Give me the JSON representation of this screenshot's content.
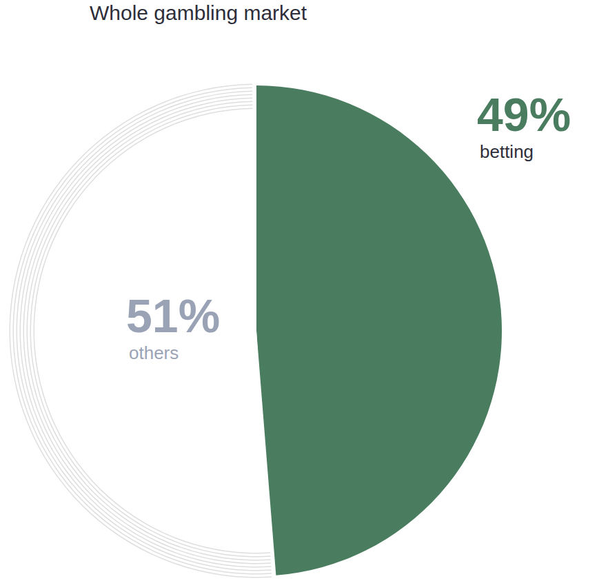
{
  "chart_data": {
    "type": "pie",
    "title": "Whole gambling market",
    "categories": [
      "betting",
      "others"
    ],
    "values": [
      49,
      51
    ],
    "value_labels": [
      "49%",
      "51%"
    ],
    "colors": [
      "#4a7c5f",
      "#ffffff"
    ]
  }
}
